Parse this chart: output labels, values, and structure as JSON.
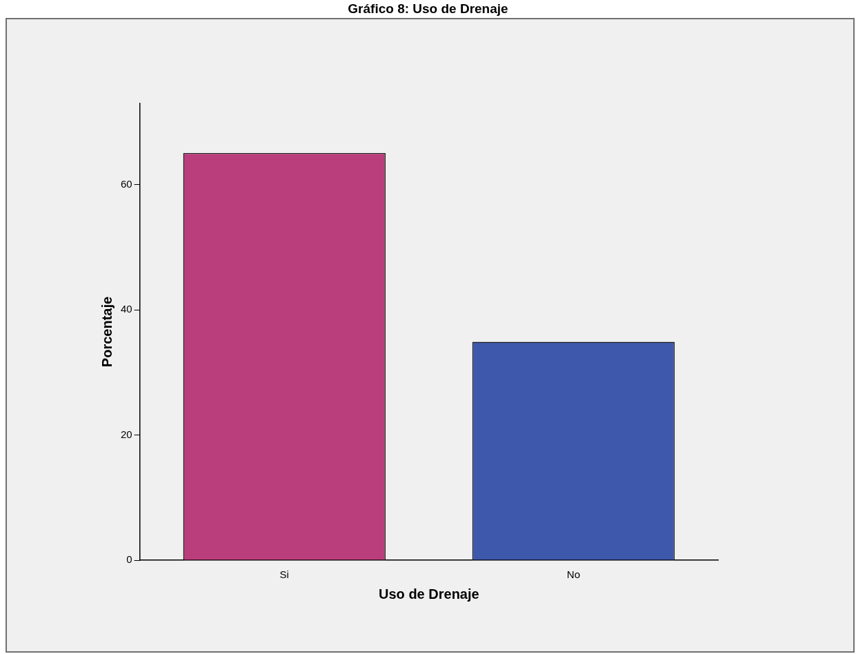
{
  "chart_data": {
    "type": "bar",
    "title": "Gráfico 8: Uso de Drenaje",
    "xlabel": "Uso de Drenaje",
    "ylabel": "Porcentaje",
    "categories": [
      "Si",
      "No"
    ],
    "series": [
      {
        "colors": [
          "#bb3e7c",
          "#3e58ab"
        ],
        "values": [
          65.1,
          34.9
        ]
      }
    ],
    "ylim": [
      0,
      73
    ],
    "yticks": [
      0,
      20,
      40,
      60
    ],
    "grid": false,
    "legend": false
  }
}
